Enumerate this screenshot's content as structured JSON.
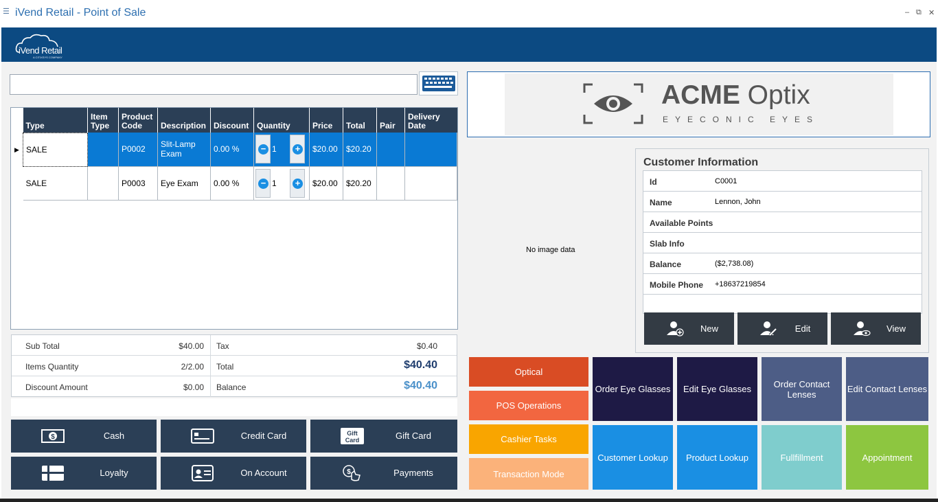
{
  "window": {
    "title": "iVend Retail - Point of Sale",
    "minimize_glyph": "–",
    "restore_glyph": "⧉",
    "close_glyph": "✕"
  },
  "header": {
    "logo_text": "iVend Retail",
    "logo_sub": "A CITIXSYS COMPANY"
  },
  "search": {
    "placeholder": "",
    "value": "",
    "keyboard_icon": "keyboard-icon"
  },
  "grid": {
    "columns": [
      "Type",
      "Item Type",
      "Product Code",
      "Description",
      "Discount",
      "Quantity",
      "Price",
      "Total",
      "Pair",
      "Delivery Date"
    ],
    "rows": [
      {
        "type": "SALE",
        "item_type": "",
        "code": "P0002",
        "description": "Slit-Lamp Exam",
        "discount": "0.00 %",
        "quantity": "1",
        "price": "$20.00",
        "total": "$20.20",
        "pair": "",
        "delivery": ""
      },
      {
        "type": "SALE",
        "item_type": "",
        "code": "P0003",
        "description": "Eye Exam",
        "discount": "0.00 %",
        "quantity": "1",
        "price": "$20.00",
        "total": "$20.20",
        "pair": "",
        "delivery": ""
      }
    ]
  },
  "totals": {
    "subtotal_label": "Sub Total",
    "subtotal": "$40.00",
    "tax_label": "Tax",
    "tax": "$0.40",
    "qty_label": "Items Quantity",
    "qty": "2/2.00",
    "total_label": "Total",
    "total": "$40.40",
    "discount_label": "Discount Amount",
    "discount": "$0.00",
    "balance_label": "Balance",
    "balance": "$40.40"
  },
  "payments": [
    "Cash",
    "Credit Card",
    "Gift Card",
    "Loyalty",
    "On Account",
    "Payments"
  ],
  "gift_icon_text": "Gift Card",
  "brand": {
    "name_bold": "ACME",
    "name_light": " Optix",
    "tagline": "EYECONIC EYES"
  },
  "image_placeholder": "No image data",
  "customer": {
    "title": "Customer Information",
    "fields": [
      {
        "k": "Id",
        "v": "C0001"
      },
      {
        "k": "Name",
        "v": "Lennon, John"
      },
      {
        "k": "Available Points",
        "v": ""
      },
      {
        "k": "Slab Info",
        "v": ""
      },
      {
        "k": "Balance",
        "v": "($2,738.08)"
      },
      {
        "k": "Mobile Phone",
        "v": "+18637219854"
      }
    ],
    "buttons": [
      "New",
      "Edit",
      "View"
    ]
  },
  "menu": [
    "Optical",
    "POS Operations",
    "Cashier Tasks",
    "Transaction Mode"
  ],
  "tiles": [
    "Order Eye Glasses",
    "Edit Eye Glasses",
    "Order Contact Lenses",
    "Edit Contact Lenses",
    "Customer Lookup",
    "Product Lookup",
    "Fullfillment",
    "Appointment"
  ],
  "colors": {
    "header": "#0c4a82",
    "selected_row": "#0a7ad4",
    "dark_button": "#2b3f56",
    "optical": "#d94c24",
    "pos_ops": "#f26640",
    "cashier": "#f9a500",
    "transaction": "#fbb27a",
    "navy_tile": "#1e1a45",
    "slate_tile": "#4d5d86",
    "blue_tile": "#1a8fe3",
    "teal_tile": "#7fcdcd",
    "green_tile": "#8dc640"
  }
}
